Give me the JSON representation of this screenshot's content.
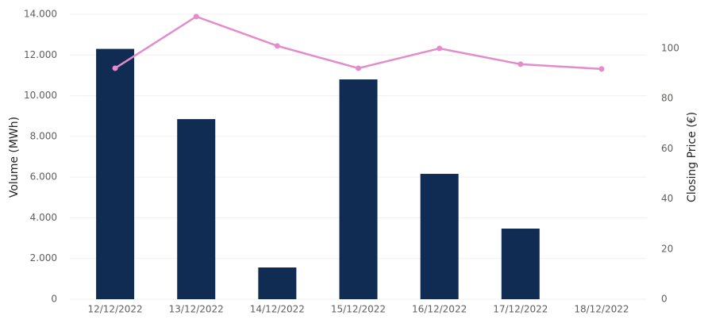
{
  "chart_data": {
    "type": "bar-line",
    "y_label": "Volume (MWh)",
    "y2_label": "Closing Price (€)",
    "categories": [
      "12/12/2022",
      "13/12/2022",
      "14/12/2022",
      "15/12/2022",
      "16/12/2022",
      "17/12/2022",
      "18/12/2022"
    ],
    "series": [
      {
        "type": "bar",
        "color": "#112c52",
        "values": [
          12300,
          8850,
          1560,
          10800,
          6160,
          3470,
          null
        ]
      },
      {
        "type": "line",
        "axis": "y2",
        "color": "#e48ccb",
        "values": [
          92.1,
          112.7,
          101,
          92.1,
          100,
          93.7,
          91.8
        ]
      }
    ],
    "ylim": [
      0,
      14000
    ],
    "yticks": [
      0,
      {
        "value": 2000,
        "label": "2.000"
      },
      {
        "value": 4000,
        "label": "4.000"
      },
      {
        "value": 6000,
        "label": "6.000"
      },
      {
        "value": 8000,
        "label": "8.000"
      },
      {
        "value": 10000,
        "label": "10.000"
      },
      {
        "value": 12000,
        "label": "12.000"
      },
      {
        "value": 14000,
        "label": "14.000"
      }
    ],
    "y2lim": [
      0,
      113.6
    ],
    "y2ticks": [
      0,
      20,
      40,
      60,
      80,
      100
    ],
    "grid": true
  }
}
